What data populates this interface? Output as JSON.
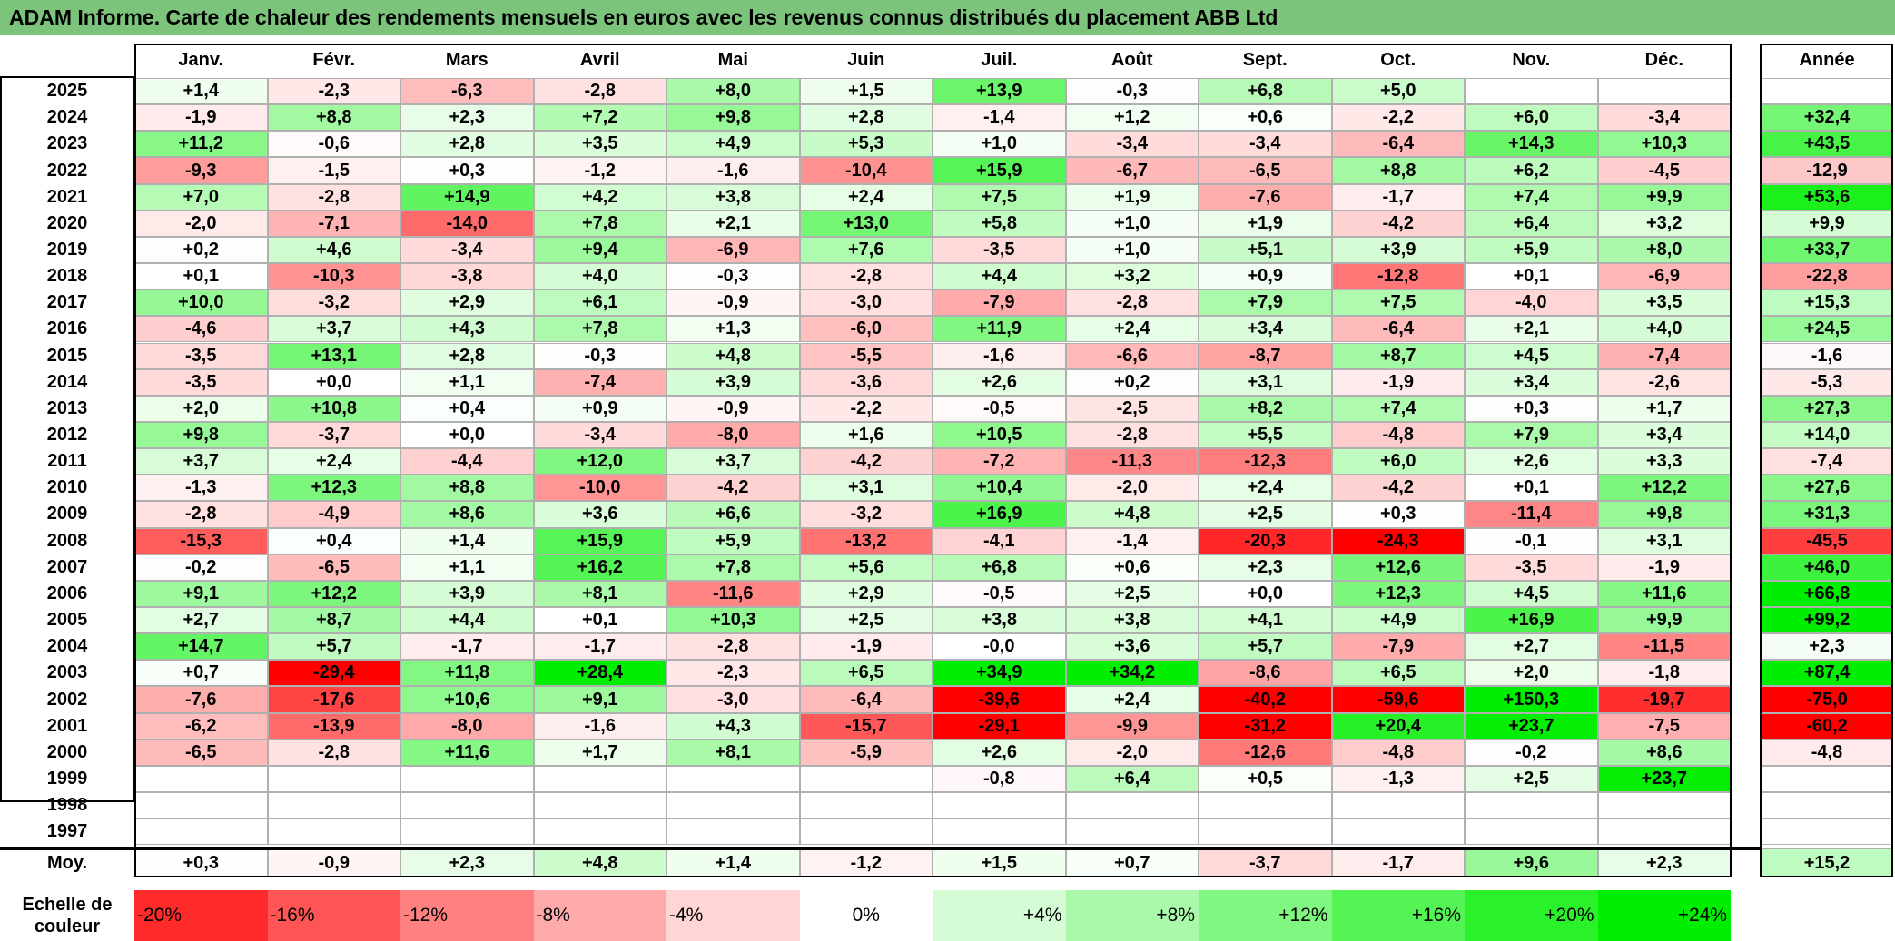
{
  "title": "ADAM Informe. Carte de chaleur des rendements mensuels en euros avec les revenus connus distribués du placement ABB Ltd",
  "chart_data": {
    "type": "heatmap",
    "months": [
      "Janv.",
      "Févr.",
      "Mars",
      "Avril",
      "Mai",
      "Juin",
      "Juil.",
      "Août",
      "Sept.",
      "Oct.",
      "Nov.",
      "Déc."
    ],
    "year_header": "Année",
    "average_label": "Moy.",
    "rows": [
      {
        "year": "2025",
        "values": [
          1.4,
          -2.3,
          -6.3,
          -2.8,
          8.0,
          1.5,
          13.9,
          -0.3,
          6.8,
          5.0,
          null,
          null
        ],
        "annual": null
      },
      {
        "year": "2024",
        "values": [
          -1.9,
          8.8,
          2.3,
          7.2,
          9.8,
          2.8,
          -1.4,
          1.2,
          0.6,
          -2.2,
          6.0,
          -3.4
        ],
        "annual": 32.4
      },
      {
        "year": "2023",
        "values": [
          11.2,
          -0.6,
          2.8,
          3.5,
          4.9,
          5.3,
          1.0,
          -3.4,
          -3.4,
          -6.4,
          14.3,
          10.3
        ],
        "annual": 43.5
      },
      {
        "year": "2022",
        "values": [
          -9.3,
          -1.5,
          0.3,
          -1.2,
          -1.6,
          -10.4,
          15.9,
          -6.7,
          -6.5,
          8.8,
          6.2,
          -4.5
        ],
        "annual": -12.9
      },
      {
        "year": "2021",
        "values": [
          7.0,
          -2.8,
          14.9,
          4.2,
          3.8,
          2.4,
          7.5,
          1.9,
          -7.6,
          -1.7,
          7.4,
          9.9
        ],
        "annual": 53.6
      },
      {
        "year": "2020",
        "values": [
          -2.0,
          -7.1,
          -14.0,
          7.8,
          2.1,
          13.0,
          5.8,
          1.0,
          1.9,
          -4.2,
          6.4,
          3.2
        ],
        "annual": 9.9
      },
      {
        "year": "2019",
        "values": [
          0.2,
          4.6,
          -3.4,
          9.4,
          -6.9,
          7.6,
          -3.5,
          1.0,
          5.1,
          3.9,
          5.9,
          8.0
        ],
        "annual": 33.7
      },
      {
        "year": "2018",
        "values": [
          0.1,
          -10.3,
          -3.8,
          4.0,
          -0.3,
          -2.8,
          4.4,
          3.2,
          0.9,
          -12.8,
          0.1,
          -6.9
        ],
        "annual": -22.8
      },
      {
        "year": "2017",
        "values": [
          10.0,
          -3.2,
          2.9,
          6.1,
          -0.9,
          -3.0,
          -7.9,
          -2.8,
          7.9,
          7.5,
          -4.0,
          3.5
        ],
        "annual": 15.3
      },
      {
        "year": "2016",
        "values": [
          -4.6,
          3.7,
          4.3,
          7.8,
          1.3,
          -6.0,
          11.9,
          2.4,
          3.4,
          -6.4,
          2.1,
          4.0
        ],
        "annual": 24.5
      },
      {
        "year": "2015",
        "values": [
          -3.5,
          13.1,
          2.8,
          -0.3,
          4.8,
          -5.5,
          -1.6,
          -6.6,
          -8.7,
          8.7,
          4.5,
          -7.4
        ],
        "annual": -1.6
      },
      {
        "year": "2014",
        "values": [
          -3.5,
          0.0,
          1.1,
          -7.4,
          3.9,
          -3.6,
          2.6,
          0.2,
          3.1,
          -1.9,
          3.4,
          -2.6
        ],
        "annual": -5.3
      },
      {
        "year": "2013",
        "values": [
          2.0,
          10.8,
          0.4,
          0.9,
          -0.9,
          -2.2,
          -0.5,
          -2.5,
          8.2,
          7.4,
          0.3,
          1.7
        ],
        "annual": 27.3
      },
      {
        "year": "2012",
        "values": [
          9.8,
          -3.7,
          0.0,
          -3.4,
          -8.0,
          1.6,
          10.5,
          -2.8,
          5.5,
          -4.8,
          7.9,
          3.4
        ],
        "annual": 14.0
      },
      {
        "year": "2011",
        "values": [
          3.7,
          2.4,
          -4.4,
          12.0,
          3.7,
          -4.2,
          -7.2,
          -11.3,
          -12.3,
          6.0,
          2.6,
          3.3
        ],
        "annual": -7.4
      },
      {
        "year": "2010",
        "values": [
          -1.3,
          12.3,
          8.8,
          -10.0,
          -4.2,
          3.1,
          10.4,
          -2.0,
          2.4,
          -4.2,
          0.1,
          12.2
        ],
        "annual": 27.6
      },
      {
        "year": "2009",
        "values": [
          -2.8,
          -4.9,
          8.6,
          3.6,
          6.6,
          -3.2,
          16.9,
          4.8,
          2.5,
          0.3,
          -11.4,
          9.8
        ],
        "annual": 31.3
      },
      {
        "year": "2008",
        "values": [
          -15.3,
          0.4,
          1.4,
          15.9,
          5.9,
          -13.2,
          -4.1,
          -1.4,
          -20.3,
          -24.3,
          -0.1,
          3.1
        ],
        "annual": -45.5
      },
      {
        "year": "2007",
        "values": [
          -0.2,
          -6.5,
          1.1,
          16.2,
          7.8,
          5.6,
          6.8,
          0.6,
          2.3,
          12.6,
          -3.5,
          -1.9
        ],
        "annual": 46.0
      },
      {
        "year": "2006",
        "values": [
          9.1,
          12.2,
          3.9,
          8.1,
          -11.6,
          2.9,
          -0.5,
          2.5,
          0.0,
          12.3,
          4.5,
          11.6
        ],
        "annual": 66.8
      },
      {
        "year": "2005",
        "values": [
          2.7,
          8.7,
          4.4,
          0.1,
          10.3,
          2.5,
          3.8,
          3.8,
          4.1,
          4.9,
          16.9,
          9.9
        ],
        "annual": 99.2
      },
      {
        "year": "2004",
        "values": [
          14.7,
          5.7,
          -1.7,
          -1.7,
          -2.8,
          -1.9,
          -0.0,
          3.6,
          5.7,
          -7.9,
          2.7,
          -11.5
        ],
        "annual": 2.3
      },
      {
        "year": "2003",
        "values": [
          0.7,
          -29.4,
          11.8,
          28.4,
          -2.3,
          6.5,
          34.9,
          34.2,
          -8.6,
          6.5,
          2.0,
          -1.8
        ],
        "annual": 87.4
      },
      {
        "year": "2002",
        "values": [
          -7.6,
          -17.6,
          10.6,
          9.1,
          -3.0,
          -6.4,
          -39.6,
          2.4,
          -40.2,
          -59.6,
          150.3,
          -19.7
        ],
        "annual": -75.0
      },
      {
        "year": "2001",
        "values": [
          -6.2,
          -13.9,
          -8.0,
          -1.6,
          4.3,
          -15.7,
          -29.1,
          -9.9,
          -31.2,
          20.4,
          23.7,
          -7.5
        ],
        "annual": -60.2
      },
      {
        "year": "2000",
        "values": [
          -6.5,
          -2.8,
          11.6,
          1.7,
          8.1,
          -5.9,
          2.6,
          -2.0,
          -12.6,
          -4.8,
          -0.2,
          8.6
        ],
        "annual": -4.8
      },
      {
        "year": "1999",
        "values": [
          null,
          null,
          null,
          null,
          null,
          null,
          -0.8,
          6.4,
          0.5,
          -1.3,
          2.5,
          23.7
        ],
        "annual": null
      },
      {
        "year": "1998",
        "values": [
          null,
          null,
          null,
          null,
          null,
          null,
          null,
          null,
          null,
          null,
          null,
          null
        ],
        "annual": null
      },
      {
        "year": "1997",
        "values": [
          null,
          null,
          null,
          null,
          null,
          null,
          null,
          null,
          null,
          null,
          null,
          null
        ],
        "annual": null
      }
    ],
    "average": {
      "values": [
        0.3,
        -0.9,
        2.3,
        4.8,
        1.4,
        -1.2,
        1.5,
        0.7,
        -3.7,
        -1.7,
        9.6,
        2.3
      ],
      "annual": 15.2
    },
    "legend": {
      "title": "Echelle de couleur",
      "steps": [
        {
          "label": "-20%",
          "value": -20
        },
        {
          "label": "-16%",
          "value": -16
        },
        {
          "label": "-12%",
          "value": -12
        },
        {
          "label": "-8%",
          "value": -8
        },
        {
          "label": "-4%",
          "value": -4
        },
        {
          "label": "0%",
          "value": 0
        },
        {
          "label": "+4%",
          "value": 4
        },
        {
          "label": "+8%",
          "value": 8
        },
        {
          "label": "+12%",
          "value": 12
        },
        {
          "label": "+16%",
          "value": 16
        },
        {
          "label": "+20%",
          "value": 20
        },
        {
          "label": "+24%",
          "value": 24
        }
      ]
    },
    "colors": {
      "negative_max": "#ff0000",
      "zero": "#ffffff",
      "positive_max": "#00ee00",
      "title_bar": "#7cc47c"
    }
  }
}
